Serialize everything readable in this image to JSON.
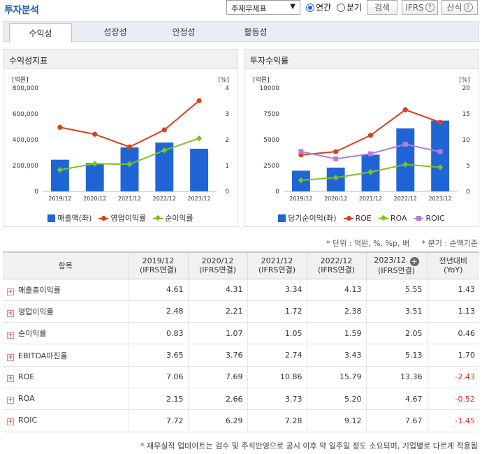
{
  "header": {
    "title": "투자분석",
    "statement_select": "주재무제표",
    "period_annual": "연간",
    "period_quarter": "분기",
    "search_button": "검색",
    "ifrs_button": "IFRS",
    "calc_button": "산식"
  },
  "tabs": [
    {
      "label": "수익성"
    },
    {
      "label": "성장성"
    },
    {
      "label": "안정성"
    },
    {
      "label": "활동성"
    }
  ],
  "chart_data": [
    {
      "type": "bar",
      "title": "수익성지표",
      "left_unit": "[억원]",
      "right_unit": "[%]",
      "categories": [
        "2019/12",
        "2020/12",
        "2021/12",
        "2022/12",
        "2023/12"
      ],
      "left_ticks": [
        "800,000",
        "600,000",
        "400,000",
        "200,000",
        "0"
      ],
      "right_ticks": [
        "4",
        "3",
        "2",
        "1",
        "0"
      ],
      "ylim_left": [
        0,
        800000
      ],
      "ylim_right": [
        0,
        4
      ],
      "bar_series": {
        "name": "매출액(좌)",
        "values": [
          245000,
          218000,
          340000,
          378000,
          330000
        ]
      },
      "line_series": [
        {
          "name": "영업이익률",
          "color": "#d9401f",
          "marker": "circle",
          "values": [
            2.48,
            2.21,
            1.72,
            2.38,
            3.51
          ]
        },
        {
          "name": "순이익률",
          "color": "#7cc322",
          "marker": "diamond",
          "values": [
            0.83,
            1.07,
            1.05,
            1.59,
            2.05
          ]
        }
      ]
    },
    {
      "type": "bar",
      "title": "투자수익률",
      "left_unit": "[억원]",
      "right_unit": "[%]",
      "categories": [
        "2019/12",
        "2020/12",
        "2021/12",
        "2022/12",
        "2023/12"
      ],
      "left_ticks": [
        "10000",
        "7500",
        "5000",
        "2500",
        "0"
      ],
      "right_ticks": [
        "20",
        "15",
        "10",
        "5",
        "0"
      ],
      "ylim_left": [
        0,
        10000
      ],
      "ylim_right": [
        0,
        20
      ],
      "bar_series": {
        "name": "당기순이익(좌)",
        "values": [
          2000,
          2300,
          3550,
          6100,
          6850
        ]
      },
      "line_series": [
        {
          "name": "ROE",
          "color": "#d9401f",
          "marker": "circle",
          "values": [
            7.06,
            7.69,
            10.86,
            15.79,
            13.36
          ]
        },
        {
          "name": "ROA",
          "color": "#7cc322",
          "marker": "diamond",
          "values": [
            2.15,
            2.66,
            3.73,
            5.2,
            4.67
          ]
        },
        {
          "name": "ROIC",
          "color": "#b07fd8",
          "marker": "square",
          "values": [
            7.72,
            6.29,
            7.28,
            9.12,
            7.67
          ]
        }
      ]
    }
  ],
  "unit_note": "* 단위 : 억원, %, %p, 배     * 분기 : 순액기준",
  "table": {
    "item_header": "항목",
    "columns": [
      {
        "line1": "2019/12",
        "line2": "(IFRS연결)"
      },
      {
        "line1": "2020/12",
        "line2": "(IFRS연결)"
      },
      {
        "line1": "2021/12",
        "line2": "(IFRS연결)"
      },
      {
        "line1": "2022/12",
        "line2": "(IFRS연결)"
      },
      {
        "line1": "2023/12",
        "line2": "(IFRS연결)"
      },
      {
        "line1": "전년대비",
        "line2": "(YoY)"
      }
    ],
    "rows": [
      {
        "label": "매출총이익률",
        "values": [
          "4.61",
          "4.31",
          "3.34",
          "4.13",
          "5.55",
          "1.43"
        ]
      },
      {
        "label": "영업이익률",
        "values": [
          "2.48",
          "2.21",
          "1.72",
          "2.38",
          "3.51",
          "1.13"
        ]
      },
      {
        "label": "순이익률",
        "values": [
          "0.83",
          "1.07",
          "1.05",
          "1.59",
          "2.05",
          "0.46"
        ]
      },
      {
        "label": "EBITDA마진율",
        "values": [
          "3.65",
          "3.76",
          "2.74",
          "3.43",
          "5.13",
          "1.70"
        ]
      },
      {
        "label": "ROE",
        "values": [
          "7.06",
          "7.69",
          "10.86",
          "15.79",
          "13.36",
          "-2.43"
        ]
      },
      {
        "label": "ROA",
        "values": [
          "2.15",
          "2.66",
          "3.73",
          "5.20",
          "4.67",
          "-0.52"
        ]
      },
      {
        "label": "ROIC",
        "values": [
          "7.72",
          "6.29",
          "7.28",
          "9.12",
          "7.67",
          "-1.45"
        ]
      }
    ]
  },
  "footnote": "* 재무실적 업데이트는 검수 및 주석반영으로 공시 이후 약 일주일 정도 소요되며, 기업별로 다르게 적용됨"
}
